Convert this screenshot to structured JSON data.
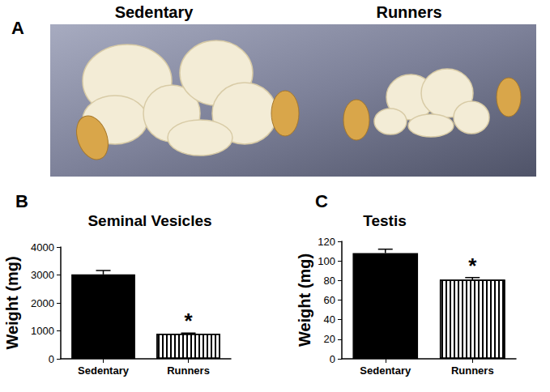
{
  "photo": {
    "panel": "A",
    "labels": [
      "Sedentary",
      "Runners"
    ]
  },
  "chart_data": [
    {
      "type": "bar",
      "panel": "B",
      "title": "Seminal Vesicles",
      "y_label": "Weight (mg)",
      "categories": [
        "Sedentary",
        "Runners"
      ],
      "values": [
        3020,
        900
      ],
      "errors": [
        140,
        20
      ],
      "colors": [
        "#000000",
        "#ffffff"
      ],
      "ylim": [
        0,
        4000
      ],
      "yticks": [
        0,
        1000,
        2000,
        3000,
        4000
      ],
      "grid": false,
      "annotations": [
        {
          "category": "Runners",
          "text": "*"
        }
      ]
    },
    {
      "type": "bar",
      "panel": "C",
      "title": "Testis",
      "y_label": "Weight (mg)",
      "categories": [
        "Sedentary",
        "Runners"
      ],
      "values": [
        108,
        81
      ],
      "errors": [
        4,
        2
      ],
      "colors": [
        "#000000",
        "#ffffff"
      ],
      "ylim": [
        0,
        120
      ],
      "yticks": [
        0,
        20,
        40,
        60,
        80,
        100,
        120
      ],
      "grid": false,
      "annotations": [
        {
          "category": "Runners",
          "text": "*"
        }
      ]
    }
  ]
}
